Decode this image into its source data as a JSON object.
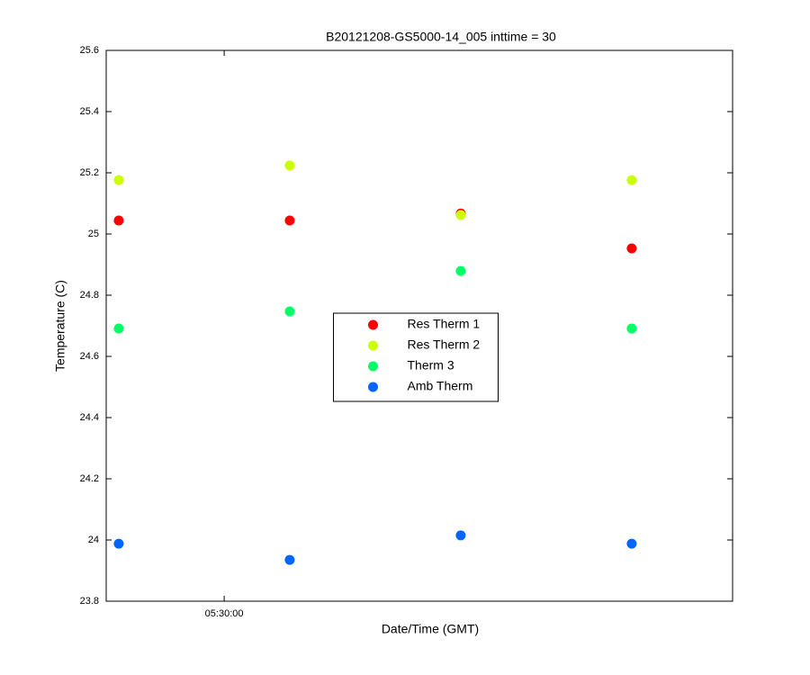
{
  "chart_data": {
    "type": "scatter",
    "title": "B20121208-GS5000-14_005 inttime = 30",
    "x_label": "Date/Time (GMT)",
    "y_label": "Temperature (C)",
    "x": [
      19763,
      19823,
      19883,
      19943
    ],
    "xlim": [
      19758.6,
      19978.4
    ],
    "xticks": [
      {
        "value": 19800,
        "label": "05:30:00"
      }
    ],
    "ylim": [
      23.8,
      25.6
    ],
    "yticks": [
      23.8,
      24,
      24.2,
      24.4,
      24.6,
      24.8,
      25,
      25.2,
      25.4,
      25.6
    ],
    "grid": false,
    "legend": "center",
    "series": [
      {
        "name": "Res Therm 1",
        "color": "#ff0000",
        "values": [
          25.044,
          25.044,
          25.067,
          24.953
        ]
      },
      {
        "name": "Res Therm 2",
        "color": "#ccff00",
        "values": [
          25.176,
          25.224,
          25.062,
          25.176
        ]
      },
      {
        "name": "Therm 3",
        "color": "#00ff66",
        "values": [
          24.691,
          24.747,
          24.879,
          24.691
        ]
      },
      {
        "name": "Amb Therm",
        "color": "#0066ff",
        "values": [
          23.988,
          23.935,
          24.015,
          23.988
        ]
      }
    ]
  }
}
